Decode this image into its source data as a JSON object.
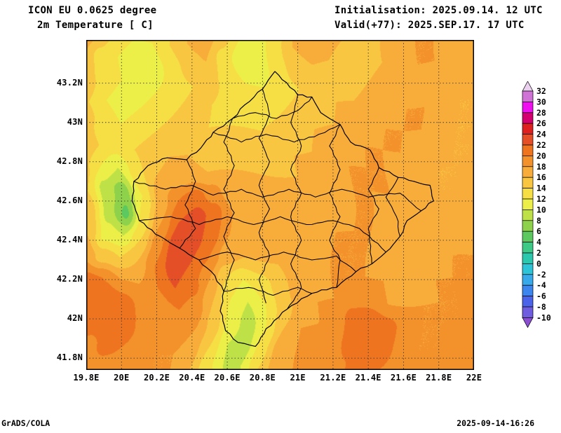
{
  "header": {
    "model_line": "ICON EU 0.0625 degree",
    "variable_line": "2m Temperature [ C]",
    "init_line": "Initialisation: 2025.09.14. 12 UTC",
    "valid_line": "Valid(+77): 2025.SEP.17. 17 UTC"
  },
  "footer": {
    "left": "GrADS/COLA",
    "right": "2025-09-14-16:26"
  },
  "chart_data": {
    "type": "heatmap",
    "title": "ICON EU 0.0625 degree — 2m Temperature [ C]",
    "units": "C",
    "lon_range": [
      19.8,
      22.0
    ],
    "lat_range": [
      41.74,
      43.42
    ],
    "grid_on": true,
    "legend_position": "right",
    "xticks": [
      {
        "label": "19.8E",
        "lon": 19.8
      },
      {
        "label": "20E",
        "lon": 20.0
      },
      {
        "label": "20.2E",
        "lon": 20.2
      },
      {
        "label": "20.4E",
        "lon": 20.4
      },
      {
        "label": "20.6E",
        "lon": 20.6
      },
      {
        "label": "20.8E",
        "lon": 20.8
      },
      {
        "label": "21E",
        "lon": 21.0
      },
      {
        "label": "21.2E",
        "lon": 21.2
      },
      {
        "label": "21.4E",
        "lon": 21.4
      },
      {
        "label": "21.6E",
        "lon": 21.6
      },
      {
        "label": "21.8E",
        "lon": 21.8
      },
      {
        "label": "22E",
        "lon": 22.0
      }
    ],
    "yticks": [
      {
        "label": "41.8N",
        "lat": 41.8
      },
      {
        "label": "42N",
        "lat": 42.0
      },
      {
        "label": "42.2N",
        "lat": 42.2
      },
      {
        "label": "42.4N",
        "lat": 42.4
      },
      {
        "label": "42.6N",
        "lat": 42.6
      },
      {
        "label": "42.8N",
        "lat": 42.8
      },
      {
        "label": "43N",
        "lat": 43.0
      },
      {
        "label": "43.2N",
        "lat": 43.2
      }
    ],
    "levels": [
      -10,
      -8,
      -6,
      -4,
      -2,
      0,
      2,
      4,
      6,
      8,
      10,
      12,
      14,
      16,
      18,
      20,
      22,
      24,
      26,
      28,
      30,
      32
    ],
    "band_colors": [
      "#8a4fd0",
      "#6f5de0",
      "#4a63e8",
      "#3c86ee",
      "#38aaea",
      "#2ec4d8",
      "#2cc8ae",
      "#3fc987",
      "#5bc95f",
      "#8ed24b",
      "#bfe148",
      "#ecef47",
      "#f6df45",
      "#f8c641",
      "#f8ad3a",
      "#f3912b",
      "#ee7420",
      "#e54f28",
      "#df2020",
      "#d40070",
      "#ee10ee",
      "#cf74d6",
      "#ecd0f0"
    ],
    "temperature_grid": {
      "nx": 23,
      "ny": 16,
      "lon_start": 19.8,
      "lon_step": 0.1,
      "lat_start": 43.42,
      "lat_step": -0.112,
      "values": [
        [
          17,
          16,
          13,
          12,
          12,
          14,
          16,
          17,
          15,
          12,
          11,
          13,
          16,
          17,
          17,
          16,
          15,
          16,
          17,
          18,
          18,
          18,
          17
        ],
        [
          16,
          13,
          12,
          11,
          11,
          13,
          15,
          16,
          13,
          11,
          11,
          13,
          15,
          16,
          16,
          15,
          15,
          16,
          17,
          18,
          18,
          17,
          17
        ],
        [
          15,
          13,
          12,
          11,
          12,
          13,
          14,
          15,
          13,
          12,
          12,
          13,
          14,
          15,
          15,
          15,
          16,
          17,
          17,
          18,
          17,
          17,
          16
        ],
        [
          14,
          12,
          11,
          12,
          13,
          14,
          15,
          14,
          13,
          13,
          13,
          14,
          15,
          15,
          16,
          16,
          17,
          17,
          18,
          18,
          17,
          16,
          16
        ],
        [
          15,
          13,
          12,
          13,
          14,
          15,
          15,
          14,
          14,
          14,
          14,
          15,
          15,
          16,
          16,
          17,
          17,
          18,
          18,
          18,
          17,
          16,
          16
        ],
        [
          16,
          14,
          13,
          14,
          15,
          16,
          16,
          15,
          15,
          15,
          15,
          15,
          16,
          16,
          17,
          17,
          18,
          18,
          18,
          17,
          17,
          16,
          16
        ],
        [
          15,
          12,
          10,
          13,
          16,
          17,
          17,
          16,
          16,
          16,
          16,
          16,
          16,
          17,
          17,
          18,
          18,
          18,
          17,
          17,
          16,
          16,
          16
        ],
        [
          14,
          9,
          7,
          12,
          17,
          20,
          21,
          19,
          17,
          17,
          17,
          17,
          17,
          17,
          17,
          18,
          18,
          18,
          17,
          17,
          16,
          16,
          17
        ],
        [
          15,
          9,
          5.5,
          13,
          18,
          22,
          23,
          21,
          18,
          17,
          17,
          17,
          17,
          17,
          17,
          18,
          18,
          17,
          17,
          17,
          17,
          17,
          17
        ],
        [
          16,
          11,
          10,
          14,
          19,
          23,
          23,
          21,
          18,
          17,
          17,
          17,
          17,
          17,
          18,
          18,
          18,
          17,
          17,
          17,
          17,
          17,
          18
        ],
        [
          18,
          15,
          14,
          16,
          20,
          23,
          22,
          20,
          17,
          16,
          16,
          16,
          17,
          17,
          18,
          18,
          18,
          17,
          17,
          17,
          17,
          18,
          18
        ],
        [
          21,
          20,
          18,
          18,
          20,
          22,
          21,
          18,
          14,
          12,
          13,
          15,
          17,
          17,
          18,
          18,
          18,
          18,
          17,
          17,
          18,
          18,
          18
        ],
        [
          22,
          22,
          21,
          19,
          19,
          20,
          19,
          16,
          12,
          10,
          12,
          15,
          17,
          18,
          18,
          19,
          19,
          18,
          18,
          18,
          18,
          18,
          19
        ],
        [
          21,
          22,
          21,
          19,
          18,
          19,
          18,
          15,
          11,
          9,
          12,
          16,
          18,
          18,
          19,
          21,
          22,
          21,
          19,
          18,
          18,
          18,
          19
        ],
        [
          19,
          21,
          20,
          19,
          18,
          18,
          17,
          14,
          10,
          9,
          13,
          17,
          18,
          19,
          19,
          21,
          22,
          21,
          19,
          18,
          18,
          19,
          19
        ],
        [
          18,
          19,
          19,
          19,
          18,
          18,
          16,
          13,
          10,
          10,
          14,
          17,
          18,
          19,
          19,
          20,
          21,
          20,
          19,
          18,
          19,
          19,
          19
        ]
      ]
    },
    "boundaries": {
      "outline": [
        [
          20.87,
          43.26
        ],
        [
          21.0,
          43.14
        ],
        [
          21.08,
          43.13
        ],
        [
          21.13,
          43.05
        ],
        [
          21.24,
          42.99
        ],
        [
          21.3,
          42.9
        ],
        [
          21.41,
          42.86
        ],
        [
          21.46,
          42.77
        ],
        [
          21.57,
          42.72
        ],
        [
          21.66,
          42.7
        ],
        [
          21.75,
          42.68
        ],
        [
          21.77,
          42.6
        ],
        [
          21.7,
          42.55
        ],
        [
          21.62,
          42.5
        ],
        [
          21.58,
          42.42
        ],
        [
          21.5,
          42.34
        ],
        [
          21.42,
          42.28
        ],
        [
          21.33,
          42.24
        ],
        [
          21.22,
          42.16
        ],
        [
          21.08,
          42.13
        ],
        [
          20.94,
          42.05
        ],
        [
          20.82,
          41.95
        ],
        [
          20.76,
          41.86
        ],
        [
          20.66,
          41.88
        ],
        [
          20.59,
          41.94
        ],
        [
          20.56,
          42.04
        ],
        [
          20.58,
          42.14
        ],
        [
          20.53,
          42.22
        ],
        [
          20.44,
          42.3
        ],
        [
          20.33,
          42.36
        ],
        [
          20.22,
          42.42
        ],
        [
          20.1,
          42.5
        ],
        [
          20.06,
          42.6
        ],
        [
          20.07,
          42.7
        ],
        [
          20.15,
          42.78
        ],
        [
          20.26,
          42.82
        ],
        [
          20.37,
          42.81
        ],
        [
          20.45,
          42.87
        ],
        [
          20.52,
          42.95
        ],
        [
          20.63,
          43.02
        ],
        [
          20.7,
          43.09
        ],
        [
          20.8,
          43.17
        ],
        [
          20.87,
          43.26
        ]
      ],
      "internal": [
        [
          [
            20.07,
            42.7
          ],
          [
            20.25,
            42.66
          ],
          [
            20.4,
            42.68
          ],
          [
            20.52,
            42.63
          ],
          [
            20.68,
            42.66
          ],
          [
            20.8,
            42.62
          ],
          [
            20.95,
            42.66
          ],
          [
            21.1,
            42.62
          ],
          [
            21.25,
            42.66
          ],
          [
            21.4,
            42.62
          ],
          [
            21.58,
            42.64
          ],
          [
            21.7,
            42.55
          ]
        ],
        [
          [
            20.1,
            42.5
          ],
          [
            20.28,
            42.52
          ],
          [
            20.44,
            42.48
          ],
          [
            20.6,
            42.52
          ],
          [
            20.75,
            42.48
          ],
          [
            20.9,
            42.52
          ],
          [
            21.05,
            42.48
          ],
          [
            21.2,
            42.5
          ],
          [
            21.35,
            42.46
          ],
          [
            21.5,
            42.34
          ]
        ],
        [
          [
            20.44,
            42.3
          ],
          [
            20.6,
            42.34
          ],
          [
            20.76,
            42.3
          ],
          [
            20.92,
            42.34
          ],
          [
            21.08,
            42.3
          ],
          [
            21.22,
            42.32
          ],
          [
            21.33,
            42.24
          ]
        ],
        [
          [
            20.52,
            42.95
          ],
          [
            20.68,
            42.9
          ],
          [
            20.82,
            42.94
          ],
          [
            20.98,
            42.9
          ],
          [
            21.12,
            42.94
          ],
          [
            21.24,
            42.99
          ]
        ],
        [
          [
            20.63,
            43.02
          ],
          [
            20.76,
            43.05
          ],
          [
            20.88,
            43.02
          ],
          [
            21.0,
            43.06
          ],
          [
            21.08,
            43.13
          ]
        ],
        [
          [
            20.37,
            42.81
          ],
          [
            20.42,
            42.7
          ],
          [
            20.36,
            42.58
          ],
          [
            20.42,
            42.46
          ],
          [
            20.33,
            42.36
          ]
        ],
        [
          [
            20.63,
            43.02
          ],
          [
            20.58,
            42.9
          ],
          [
            20.64,
            42.78
          ],
          [
            20.58,
            42.66
          ],
          [
            20.64,
            42.54
          ],
          [
            20.58,
            42.42
          ],
          [
            20.64,
            42.3
          ],
          [
            20.58,
            42.14
          ]
        ],
        [
          [
            20.8,
            43.17
          ],
          [
            20.84,
            43.04
          ],
          [
            20.78,
            42.92
          ],
          [
            20.84,
            42.8
          ],
          [
            20.78,
            42.68
          ],
          [
            20.84,
            42.56
          ],
          [
            20.78,
            42.44
          ],
          [
            20.84,
            42.32
          ],
          [
            20.78,
            42.2
          ],
          [
            20.82,
            42.08
          ]
        ],
        [
          [
            21.0,
            43.14
          ],
          [
            20.96,
            43.0
          ],
          [
            21.02,
            42.88
          ],
          [
            20.96,
            42.76
          ],
          [
            21.02,
            42.64
          ],
          [
            20.96,
            42.52
          ],
          [
            21.02,
            42.4
          ],
          [
            20.96,
            42.28
          ],
          [
            21.02,
            42.16
          ],
          [
            20.94,
            42.05
          ]
        ],
        [
          [
            21.24,
            42.99
          ],
          [
            21.18,
            42.88
          ],
          [
            21.24,
            42.76
          ],
          [
            21.18,
            42.64
          ],
          [
            21.24,
            42.52
          ],
          [
            21.18,
            42.4
          ],
          [
            21.24,
            42.3
          ],
          [
            21.22,
            42.16
          ]
        ],
        [
          [
            21.46,
            42.77
          ],
          [
            21.4,
            42.66
          ],
          [
            21.46,
            42.56
          ],
          [
            21.4,
            42.46
          ],
          [
            21.42,
            42.28
          ]
        ],
        [
          [
            21.57,
            42.72
          ],
          [
            21.5,
            42.62
          ],
          [
            21.56,
            42.52
          ],
          [
            21.58,
            42.42
          ]
        ],
        [
          [
            20.58,
            42.14
          ],
          [
            20.72,
            42.16
          ],
          [
            20.86,
            42.12
          ],
          [
            21.0,
            42.16
          ],
          [
            21.08,
            42.13
          ]
        ]
      ]
    }
  }
}
